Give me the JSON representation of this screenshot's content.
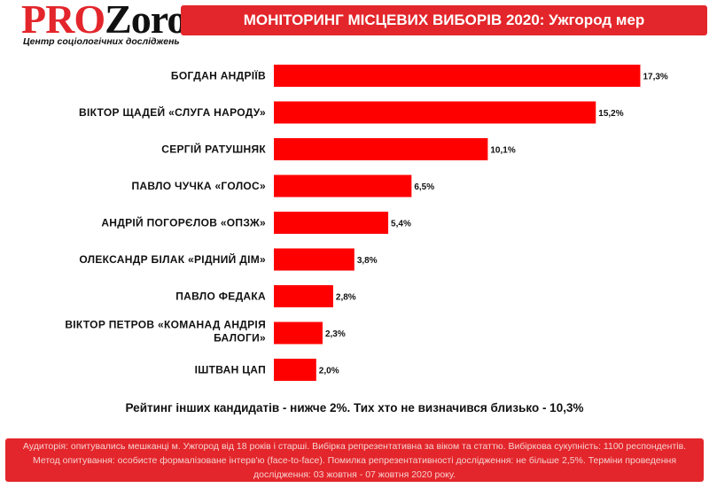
{
  "header": {
    "logo_pro": "PRO",
    "logo_zoro": "Zoro",
    "logo_subtitle": "Центр соціологічних досліджень",
    "title": "МОНІТОРИНГ МІСЦЕВИХ ВИБОРІВ 2020: Ужгород мер"
  },
  "chart_data": {
    "type": "bar",
    "orientation": "horizontal",
    "title": "",
    "xlabel": "",
    "ylabel": "",
    "grid": false,
    "legend": "none",
    "color": "#ff0000",
    "categories": [
      "БОГДАН АНДРІЇВ",
      "ВІКТОР ЩАДЕЙ «СЛУГА НАРОДУ»",
      "СЕРГІЙ РАТУШНЯК",
      "ПАВЛО ЧУЧКА «ГОЛОС»",
      "АНДРІЙ ПОГОРЄЛОВ «ОПЗЖ»",
      "ОЛЕКСАНДР БІЛАК «РІДНИЙ ДІМ»",
      "ПАВЛО ФЕДАКА",
      "ВІКТОР ПЕТРОВ «КОМАНАД АНДРІЯ БАЛОГИ»",
      "ІШТВАН ЦАП"
    ],
    "label_lines": [
      [
        "БОГДАН АНДРІЇВ"
      ],
      [
        "ВІКТОР ЩАДЕЙ «СЛУГА НАРОДУ»"
      ],
      [
        "СЕРГІЙ РАТУШНЯК"
      ],
      [
        "ПАВЛО ЧУЧКА «ГОЛОС»"
      ],
      [
        "АНДРІЙ ПОГОРЄЛОВ «ОПЗЖ»"
      ],
      [
        "ОЛЕКСАНДР БІЛАК «РІДНИЙ ДІМ»"
      ],
      [
        "ПАВЛО ФЕДАКА"
      ],
      [
        "ВІКТОР ПЕТРОВ «КОМАНАД АНДРІЯ",
        "БАЛОГИ»"
      ],
      [
        "ІШТВАН ЦАП"
      ]
    ],
    "values": [
      17.3,
      15.2,
      10.1,
      6.5,
      5.4,
      3.8,
      2.8,
      2.3,
      2.0
    ],
    "value_labels": [
      "17,3%",
      "15,2%",
      "10,1%",
      "6,5%",
      "5,4%",
      "3,8%",
      "2,8%",
      "2,3%",
      "2,0%"
    ]
  },
  "footnote": "Рейтинг інших кандидатів - нижче 2%. Тих хто не визначився близько - 10,3%",
  "footer_text": "Аудиторія: опитувались мешканці м. Ужгород від 18 років і старші. Вибірка репрезентативна за віком та статтю. Вибіркова сукупність: 1100 респондентів. Метод опитування: особисте формалізоване інтерв'ю (face-to-face). Помилка репрезентативності дослідження: не більше 2,5%. Терміни проведення дослідження: 03 жовтня - 07 жовтня 2020 року."
}
